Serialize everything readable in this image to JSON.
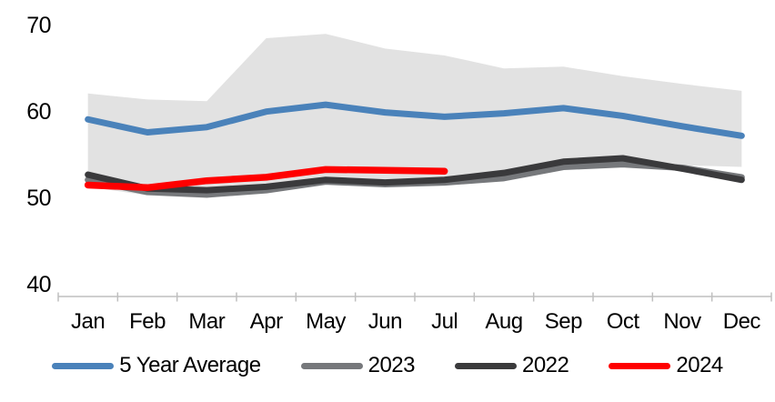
{
  "chart_data": {
    "type": "line",
    "title": "",
    "categories": [
      "Jan",
      "Feb",
      "Mar",
      "Apr",
      "May",
      "Jun",
      "Jul",
      "Aug",
      "Sep",
      "Oct",
      "Nov",
      "Dec"
    ],
    "y_axis": {
      "ticks": [
        40,
        50,
        60,
        70
      ],
      "ylim": [
        38.6,
        70.8
      ],
      "gridlines": false
    },
    "band": {
      "name": "5-year-range",
      "color": "#e2e2e2",
      "top": [
        62.1,
        61.4,
        61.2,
        68.5,
        69.0,
        67.3,
        66.5,
        65.0,
        65.2,
        64.1,
        63.2,
        62.4
      ],
      "bottom": [
        51.3,
        50.3,
        50.0,
        50.8,
        51.7,
        51.6,
        52.0,
        52.4,
        53.9,
        54.4,
        53.8,
        53.6
      ]
    },
    "series": [
      {
        "name": "5 Year Average",
        "color": "#4a82ba",
        "width": 7,
        "values": [
          59.1,
          57.6,
          58.2,
          60.0,
          60.8,
          59.9,
          59.4,
          59.8,
          60.4,
          59.5,
          58.3,
          57.2
        ]
      },
      {
        "name": "2023",
        "color": "#76787b",
        "width": 7,
        "values": [
          52.1,
          50.7,
          50.4,
          50.9,
          51.9,
          51.6,
          51.8,
          52.3,
          53.6,
          53.9,
          53.5,
          52.4
        ]
      },
      {
        "name": "2022",
        "color": "#3a3a3c",
        "width": 7,
        "values": [
          52.7,
          51.1,
          50.9,
          51.3,
          52.1,
          51.8,
          52.1,
          52.9,
          54.2,
          54.6,
          53.4,
          52.1
        ]
      },
      {
        "name": "2024",
        "color": "#ff0000",
        "width": 7.5,
        "values": [
          51.5,
          51.2,
          52.0,
          52.4,
          53.3,
          53.2,
          53.1
        ]
      }
    ],
    "legend": {
      "position": "bottom",
      "entries": [
        "5 Year Average",
        "2023",
        "2022",
        "2024"
      ]
    },
    "axis_color": "#bfbfbf"
  }
}
